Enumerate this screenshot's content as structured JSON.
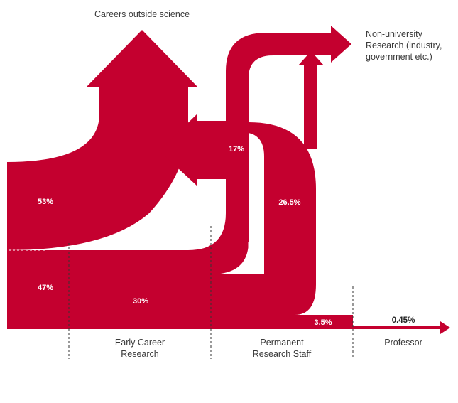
{
  "colors": {
    "flow": "#c4002f",
    "text": "#3a3a3a",
    "on_flow": "#ffffff"
  },
  "labels": {
    "careers_outside": "Careers outside science",
    "non_university_1": "Non-university",
    "non_university_2": "Research (industry,",
    "non_university_3": "government etc.)"
  },
  "stages": {
    "early_1": "Early Career",
    "early_2": "Research",
    "permanent_1": "Permanent",
    "permanent_2": "Research Staff",
    "professor": "Professor"
  },
  "percentages": {
    "p53": "53%",
    "p47": "47%",
    "p30": "30%",
    "p17": "17%",
    "p26_5": "26.5%",
    "p3_5": "3.5%",
    "p0_45": "0.45%"
  }
}
